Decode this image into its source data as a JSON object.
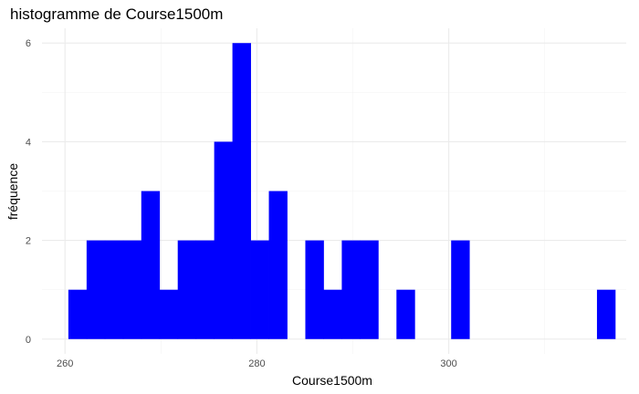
{
  "chart_data": {
    "type": "bar",
    "title": "histogramme de Course1500m",
    "xlabel": "Course1500m",
    "ylabel": "fréquence",
    "bin_width": 1.9,
    "bin_centers": [
      261.3,
      263.2,
      265.1,
      267.0,
      268.9,
      270.8,
      272.7,
      274.6,
      276.5,
      278.4,
      280.3,
      282.2,
      284.1,
      286.0,
      287.9,
      289.8,
      291.7,
      293.6,
      295.5,
      297.4,
      299.3,
      301.2,
      303.1,
      305.0,
      306.9,
      308.8,
      310.7,
      312.6,
      314.5,
      316.4
    ],
    "values": [
      1,
      2,
      2,
      2,
      3,
      1,
      2,
      2,
      4,
      6,
      2,
      3,
      0,
      2,
      1,
      2,
      2,
      0,
      1,
      0,
      0,
      2,
      0,
      0,
      0,
      0,
      0,
      0,
      0,
      1
    ],
    "xlim": [
      257.6,
      318.5
    ],
    "ylim": [
      -0.3,
      6.3
    ],
    "x_ticks": [
      260,
      280,
      300
    ],
    "y_ticks": [
      0,
      2,
      4,
      6
    ],
    "bar_color": "#0000ff",
    "grid": true
  }
}
